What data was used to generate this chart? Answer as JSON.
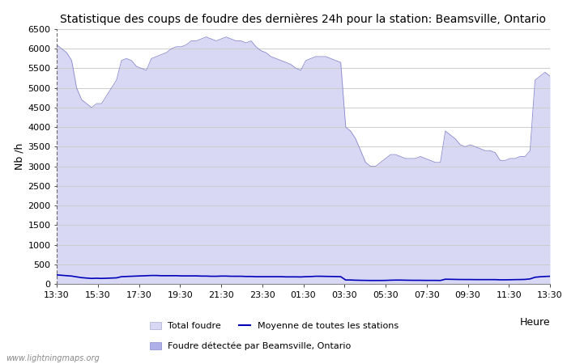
{
  "title": "Statistique des coups de foudre des dernières 24h pour la station: Beamsville, Ontario",
  "ylabel": "Nb /h",
  "xlabel": "Heure",
  "xlim": [
    0,
    96
  ],
  "ylim": [
    0,
    6500
  ],
  "yticks": [
    0,
    500,
    1000,
    1500,
    2000,
    2500,
    3000,
    3500,
    4000,
    4500,
    5000,
    5500,
    6000,
    6500
  ],
  "xtick_labels": [
    "13:30",
    "15:30",
    "17:30",
    "19:30",
    "21:30",
    "23:30",
    "01:30",
    "03:30",
    "05:30",
    "07:30",
    "09:30",
    "11:30",
    "13:30"
  ],
  "bg_color": "#ffffff",
  "fill_color": "#d8d8f5",
  "local_line_color": "#8888cc",
  "mean_line_color": "#0000bb",
  "watermark": "www.lightningmaps.org",
  "legend_total": "Total foudre",
  "legend_local": "Foudre détectée par Beamsville, Ontario",
  "legend_mean": "Moyenne de toutes les stations",
  "total_foudre": [
    6100,
    6000,
    5900,
    5700,
    5000,
    4700,
    4600,
    4500,
    4600,
    4600,
    4800,
    5000,
    5200,
    5700,
    5750,
    5700,
    5550,
    5500,
    5450,
    5750,
    5800,
    5850,
    5900,
    6000,
    6050,
    6050,
    6100,
    6200,
    6200,
    6250,
    6300,
    6250,
    6200,
    6250,
    6300,
    6250,
    6200,
    6200,
    6150,
    6200,
    6050,
    5950,
    5900,
    5800,
    5750,
    5700,
    5650,
    5600,
    5500,
    5450,
    5700,
    5750,
    5800,
    5800,
    5800,
    5750,
    5700,
    5650,
    4000,
    3900,
    3700,
    3400,
    3100,
    3000,
    3000,
    3100,
    3200,
    3300,
    3300,
    3250,
    3200,
    3200,
    3200,
    3250,
    3200,
    3150,
    3100,
    3100,
    3900,
    3800,
    3700,
    3550,
    3500,
    3550,
    3500,
    3450,
    3400,
    3400,
    3350,
    3150,
    3150,
    3200,
    3200,
    3250,
    3250,
    3400,
    5200,
    5300,
    5400,
    5300
  ],
  "mean_line": [
    230,
    220,
    210,
    200,
    180,
    160,
    150,
    140,
    145,
    140,
    145,
    150,
    155,
    185,
    190,
    195,
    200,
    205,
    210,
    215,
    215,
    210,
    210,
    210,
    210,
    205,
    205,
    205,
    205,
    200,
    200,
    195,
    195,
    200,
    200,
    195,
    195,
    195,
    190,
    190,
    185,
    185,
    185,
    185,
    185,
    185,
    180,
    180,
    180,
    178,
    185,
    188,
    195,
    195,
    192,
    190,
    188,
    185,
    100,
    100,
    95,
    92,
    90,
    88,
    88,
    88,
    90,
    95,
    98,
    98,
    95,
    93,
    92,
    92,
    90,
    90,
    90,
    88,
    120,
    118,
    115,
    113,
    112,
    112,
    110,
    110,
    110,
    110,
    110,
    105,
    105,
    107,
    110,
    112,
    115,
    128,
    170,
    182,
    190,
    195
  ]
}
